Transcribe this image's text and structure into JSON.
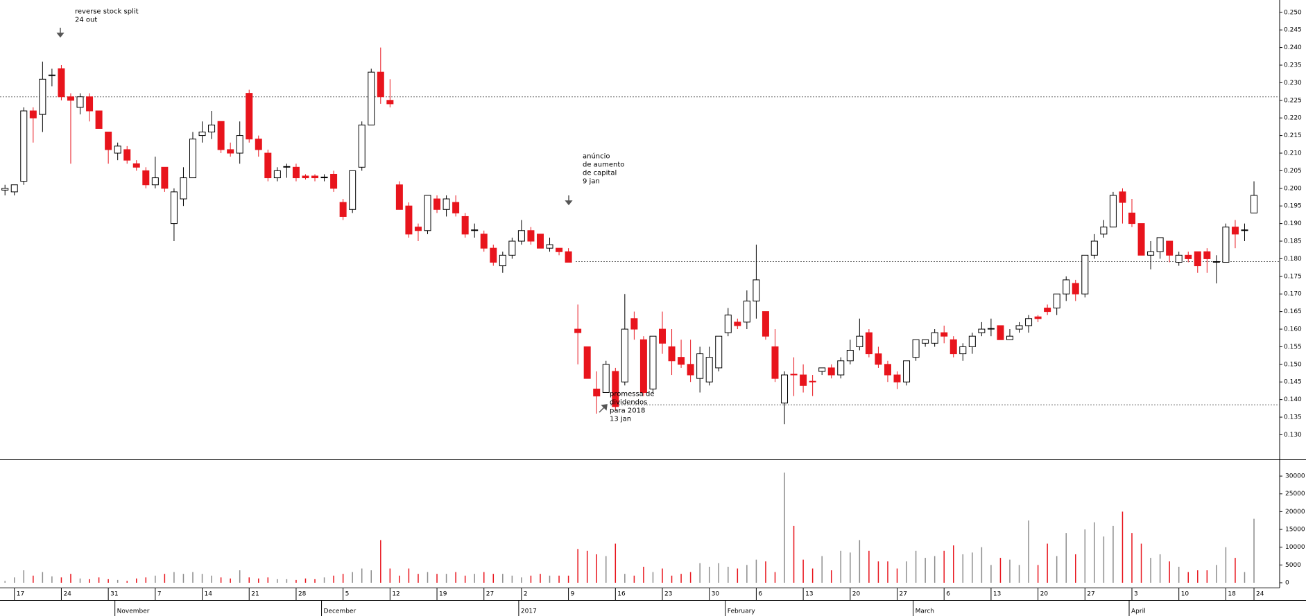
{
  "chart_data": {
    "type": "candlestick",
    "annotations": [
      {
        "lines": [
          "reverse stock split",
          "24 out"
        ]
      },
      {
        "lines": [
          "anúncio",
          "de aumento",
          "de capital",
          "9 jan"
        ]
      },
      {
        "lines": [
          "promessa de",
          "dividendos",
          "para 2018",
          "13 jan"
        ]
      }
    ],
    "categories": [
      null,
      "17",
      null,
      null,
      null,
      null,
      "24",
      null,
      null,
      null,
      null,
      "31",
      null,
      null,
      null,
      null,
      "7",
      null,
      null,
      null,
      null,
      "14",
      null,
      null,
      null,
      null,
      "21",
      null,
      null,
      null,
      null,
      "28",
      null,
      null,
      null,
      null,
      "5",
      null,
      null,
      null,
      null,
      "12",
      null,
      null,
      null,
      null,
      "19",
      null,
      null,
      null,
      null,
      "27",
      null,
      null,
      null,
      "2",
      null,
      null,
      null,
      null,
      "9",
      null,
      null,
      null,
      null,
      "16",
      null,
      null,
      null,
      null,
      "23",
      null,
      null,
      null,
      null,
      "30",
      null,
      null,
      null,
      null,
      "6",
      null,
      null,
      null,
      null,
      "13",
      null,
      null,
      null,
      null,
      "20",
      null,
      null,
      null,
      null,
      "27",
      null,
      null,
      null,
      null,
      "6",
      null,
      null,
      null,
      null,
      "13",
      null,
      null,
      null,
      null,
      "20",
      null,
      null,
      null,
      null,
      "27",
      null,
      null,
      null,
      null,
      "3",
      null,
      null,
      null,
      null,
      "10",
      null,
      null,
      null,
      null,
      "18",
      null,
      null,
      "24"
    ],
    "months": [
      null,
      null,
      null,
      null,
      null,
      null,
      null,
      null,
      null,
      null,
      null,
      null,
      "November",
      null,
      null,
      null,
      null,
      null,
      null,
      null,
      null,
      null,
      null,
      null,
      null,
      null,
      null,
      null,
      null,
      null,
      null,
      null,
      null,
      null,
      "December",
      null,
      null,
      null,
      null,
      null,
      null,
      null,
      null,
      null,
      null,
      null,
      null,
      null,
      null,
      null,
      null,
      null,
      null,
      null,
      null,
      "2017",
      null,
      null,
      null,
      null,
      null,
      null,
      null,
      null,
      null,
      null,
      null,
      null,
      null,
      null,
      null,
      null,
      null,
      null,
      null,
      null,
      null,
      "February",
      null,
      null,
      null,
      null,
      null,
      null,
      null,
      null,
      null,
      null,
      null,
      null,
      null,
      null,
      null,
      null,
      null,
      null,
      null,
      "March",
      null,
      null,
      null,
      null,
      null,
      null,
      null,
      null,
      null,
      null,
      null,
      null,
      null,
      null,
      null,
      null,
      null,
      null,
      null,
      null,
      null,
      null,
      "April",
      null,
      null,
      null,
      null,
      null,
      null,
      null,
      null,
      null,
      null,
      null,
      null,
      null
    ],
    "open": [
      0.1995,
      0.199,
      0.202,
      0.222,
      0.221,
      0.232,
      0.234,
      0.226,
      0.223,
      0.226,
      0.222,
      0.216,
      0.21,
      0.211,
      0.207,
      0.205,
      0.201,
      0.206,
      0.19,
      0.197,
      0.203,
      0.215,
      0.216,
      0.219,
      0.211,
      0.21,
      0.227,
      0.214,
      0.21,
      0.203,
      0.206,
      0.206,
      0.2035,
      0.2035,
      0.203,
      0.204,
      0.196,
      0.194,
      0.206,
      0.218,
      0.233,
      0.225,
      0.201,
      0.195,
      0.189,
      0.188,
      0.197,
      0.194,
      0.196,
      0.192,
      0.188,
      0.187,
      0.183,
      0.178,
      0.181,
      0.185,
      0.188,
      0.187,
      0.183,
      0.183,
      0.182,
      0.16,
      0.155,
      0.143,
      0.142,
      0.148,
      0.145,
      0.163,
      0.157,
      0.143,
      0.16,
      0.155,
      0.152,
      0.15,
      0.146,
      0.145,
      0.149,
      0.159,
      0.162,
      0.162,
      0.168,
      0.165,
      0.155,
      0.139,
      0.1472,
      0.147,
      0.1452,
      0.148,
      0.149,
      0.147,
      0.151,
      0.155,
      0.159,
      0.153,
      0.15,
      0.147,
      0.145,
      0.152,
      0.156,
      0.156,
      0.159,
      0.157,
      0.153,
      0.155,
      0.159,
      0.16,
      0.161,
      0.157,
      0.16,
      0.161,
      0.1635,
      0.166,
      0.166,
      0.17,
      0.173,
      0.17,
      0.181,
      0.187,
      0.189,
      0.199,
      0.193,
      0.19,
      0.181,
      0.182,
      0.185,
      0.179,
      0.181,
      0.182,
      0.182,
      0.179,
      0.179,
      0.189,
      0.188,
      0.193
    ],
    "high": [
      0.201,
      0.201,
      0.223,
      0.223,
      0.236,
      0.234,
      0.235,
      0.227,
      0.227,
      0.227,
      0.222,
      0.216,
      0.213,
      0.212,
      0.208,
      0.206,
      0.209,
      0.206,
      0.2,
      0.206,
      0.216,
      0.219,
      0.222,
      0.219,
      0.213,
      0.219,
      0.228,
      0.215,
      0.211,
      0.206,
      0.207,
      0.207,
      0.204,
      0.204,
      0.204,
      0.205,
      0.197,
      0.205,
      0.219,
      0.234,
      0.24,
      0.231,
      0.202,
      0.196,
      0.19,
      0.198,
      0.198,
      0.198,
      0.198,
      0.193,
      0.19,
      0.188,
      0.184,
      0.182,
      0.186,
      0.191,
      0.189,
      0.187,
      0.186,
      0.183,
      0.183,
      0.167,
      0.155,
      0.148,
      0.151,
      0.149,
      0.17,
      0.165,
      0.158,
      0.158,
      0.165,
      0.16,
      0.157,
      0.157,
      0.155,
      0.155,
      0.158,
      0.166,
      0.163,
      0.171,
      0.184,
      0.165,
      0.16,
      0.148,
      0.152,
      0.15,
      0.147,
      0.149,
      0.15,
      0.152,
      0.157,
      0.163,
      0.16,
      0.155,
      0.151,
      0.148,
      0.151,
      0.157,
      0.157,
      0.16,
      0.161,
      0.158,
      0.156,
      0.159,
      0.162,
      0.163,
      0.161,
      0.16,
      0.162,
      0.164,
      0.164,
      0.167,
      0.17,
      0.175,
      0.174,
      0.181,
      0.187,
      0.191,
      0.199,
      0.2,
      0.197,
      0.19,
      0.185,
      0.186,
      0.185,
      0.182,
      0.182,
      0.182,
      0.183,
      0.181,
      0.19,
      0.191,
      0.19,
      0.202
    ],
    "low": [
      0.198,
      0.198,
      0.201,
      0.213,
      0.216,
      0.229,
      0.225,
      0.207,
      0.221,
      0.219,
      0.217,
      0.207,
      0.208,
      0.207,
      0.205,
      0.2,
      0.2,
      0.199,
      0.185,
      0.195,
      0.203,
      0.213,
      0.214,
      0.21,
      0.209,
      0.207,
      0.213,
      0.209,
      0.202,
      0.202,
      0.203,
      0.202,
      0.2025,
      0.202,
      0.202,
      0.199,
      0.191,
      0.193,
      0.205,
      0.218,
      0.224,
      0.223,
      0.194,
      0.186,
      0.185,
      0.187,
      0.193,
      0.192,
      0.192,
      0.186,
      0.186,
      0.182,
      0.178,
      0.176,
      0.18,
      0.184,
      0.184,
      0.183,
      0.182,
      0.181,
      0.179,
      0.15,
      0.146,
      0.136,
      0.142,
      0.137,
      0.144,
      0.157,
      0.141,
      0.142,
      0.153,
      0.147,
      0.149,
      0.145,
      0.142,
      0.144,
      0.148,
      0.158,
      0.16,
      0.16,
      0.163,
      0.157,
      0.145,
      0.133,
      0.141,
      0.142,
      0.141,
      0.147,
      0.146,
      0.146,
      0.15,
      0.154,
      0.152,
      0.149,
      0.145,
      0.143,
      0.144,
      0.151,
      0.155,
      0.155,
      0.156,
      0.152,
      0.151,
      0.153,
      0.158,
      0.158,
      0.157,
      0.157,
      0.159,
      0.159,
      0.162,
      0.164,
      0.164,
      0.168,
      0.168,
      0.169,
      0.18,
      0.186,
      0.189,
      0.19,
      0.189,
      0.181,
      0.177,
      0.18,
      0.179,
      0.178,
      0.179,
      0.176,
      0.176,
      0.173,
      0.179,
      0.183,
      0.185,
      0.193
    ],
    "close": [
      0.2,
      0.201,
      0.222,
      0.22,
      0.231,
      0.2322,
      0.226,
      0.225,
      0.226,
      0.222,
      0.217,
      0.211,
      0.212,
      0.208,
      0.206,
      0.201,
      0.203,
      0.2,
      0.199,
      0.203,
      0.214,
      0.216,
      0.218,
      0.211,
      0.21,
      0.215,
      0.214,
      0.211,
      0.203,
      0.205,
      0.2062,
      0.203,
      0.203,
      0.203,
      0.2032,
      0.2,
      0.192,
      0.205,
      0.218,
      0.233,
      0.226,
      0.224,
      0.194,
      0.187,
      0.188,
      0.198,
      0.194,
      0.197,
      0.193,
      0.187,
      0.1882,
      0.183,
      0.179,
      0.181,
      0.185,
      0.188,
      0.185,
      0.183,
      0.184,
      0.182,
      0.179,
      0.159,
      0.146,
      0.141,
      0.15,
      0.138,
      0.16,
      0.16,
      0.142,
      0.158,
      0.156,
      0.151,
      0.15,
      0.147,
      0.153,
      0.152,
      0.158,
      0.164,
      0.161,
      0.168,
      0.174,
      0.158,
      0.146,
      0.147,
      0.147,
      0.144,
      0.145,
      0.149,
      0.147,
      0.151,
      0.154,
      0.158,
      0.153,
      0.15,
      0.147,
      0.145,
      0.151,
      0.157,
      0.157,
      0.159,
      0.158,
      0.153,
      0.155,
      0.158,
      0.16,
      0.1602,
      0.157,
      0.158,
      0.161,
      0.163,
      0.163,
      0.165,
      0.17,
      0.174,
      0.17,
      0.181,
      0.185,
      0.189,
      0.198,
      0.196,
      0.19,
      0.181,
      0.182,
      0.186,
      0.181,
      0.181,
      0.18,
      0.178,
      0.18,
      0.1792,
      0.189,
      0.187,
      0.1882,
      0.198
    ],
    "volume": [
      500,
      1500,
      3500,
      2000,
      3000,
      1800,
      1500,
      2500,
      1200,
      1000,
      1500,
      1000,
      800,
      500,
      1200,
      1500,
      2000,
      2500,
      3000,
      2500,
      3000,
      2500,
      2000,
      1500,
      1200,
      3500,
      1500,
      1200,
      1500,
      1000,
      1000,
      800,
      1200,
      1000,
      1500,
      2000,
      2500,
      3000,
      4000,
      3500,
      12000,
      4000,
      2000,
      4000,
      2500,
      3000,
      2500,
      2500,
      3000,
      2000,
      2500,
      3000,
      2500,
      2500,
      2000,
      1500,
      2000,
      2500,
      2000,
      2000,
      2000,
      9500,
      9000,
      8000,
      7500,
      11000,
      2500,
      2000,
      4500,
      3000,
      4000,
      2000,
      2500,
      3000,
      5500,
      4500,
      5500,
      4500,
      4000,
      5000,
      6500,
      6000,
      3000,
      31000,
      16000,
      6500,
      4000,
      7500,
      3500,
      9000,
      8500,
      12000,
      9000,
      6000,
      6000,
      4000,
      6000,
      9000,
      7000,
      7500,
      9000,
      10500,
      8000,
      8500,
      10000,
      5000,
      7000,
      6500,
      5000,
      17500,
      5000,
      11000,
      7500,
      14000,
      8000,
      15000,
      17000,
      13000,
      16000,
      20000,
      14000,
      11000,
      7000,
      8000,
      6000,
      4500,
      3000,
      3500,
      3500,
      5000,
      10000,
      7000,
      3000,
      18000
    ],
    "up_color": "#ffffff",
    "down_color": "#e8141c",
    "volume_up_color": "#8c8c8c",
    "reference_lines": [
      0.226,
      0.1792,
      0.1385
    ],
    "ylim": [
      0.123,
      0.2535
    ],
    "yticks": [
      {
        "value": 0.13,
        "label": "0.130"
      },
      0.135,
      {
        "value": 0.14,
        "label": "0.140"
      },
      0.145,
      {
        "value": 0.15,
        "label": "0.150"
      },
      0.155,
      {
        "value": 0.16,
        "label": "0.160"
      },
      0.165,
      {
        "value": 0.17,
        "label": "0.170"
      },
      0.175,
      {
        "value": 0.18,
        "label": "0.180"
      },
      0.185,
      {
        "value": 0.19,
        "label": "0.190"
      },
      0.195,
      {
        "value": 0.2,
        "label": "0.200"
      },
      0.205,
      {
        "value": 0.21,
        "label": "0.210"
      },
      0.215,
      {
        "value": 0.22,
        "label": "0.220"
      },
      0.225,
      {
        "value": 0.23,
        "label": "0.230"
      },
      0.235,
      {
        "value": 0.24,
        "label": "0.240"
      },
      0.245,
      {
        "value": 0.25,
        "label": "0.250"
      }
    ],
    "volume_ylim": [
      0,
      34500
    ],
    "volume_yticks": [
      0,
      5000,
      10000,
      15000,
      20000,
      25000,
      30000
    ]
  }
}
